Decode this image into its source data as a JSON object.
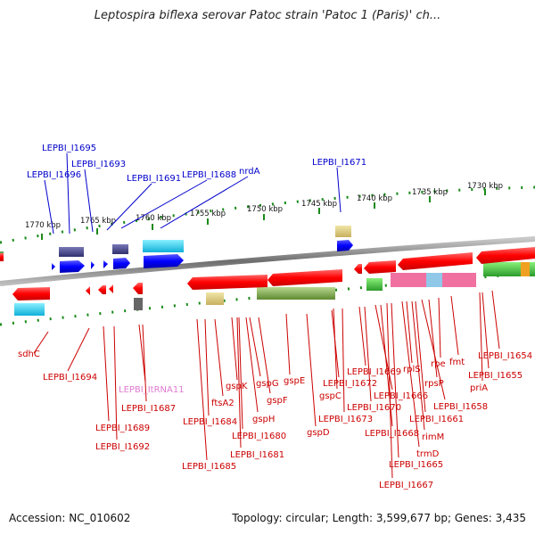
{
  "title": "Leptospira biflexa serovar Patoc strain 'Patoc 1 (Paris)' ch...",
  "footer": {
    "accession": "Accession: NC_010602",
    "topology": "Topology: circular; Length: 3,599,677 bp; Genes: 3,435"
  },
  "colors": {
    "top_labels": "#0000cc",
    "bottom_labels": "#cc0000",
    "rna_label": "#e07ad0",
    "backbone": "#808080",
    "ticks": "#1a8a1a"
  },
  "scale": {
    "ticks": [
      "1770 kbp",
      "1765 kbp",
      "1760 kbp",
      "1755 kbp",
      "1750 kbp",
      "1745 kbp",
      "1740 kbp",
      "1735 kbp",
      "1730 kbp"
    ]
  },
  "top_labels": [
    "LEPBI_I1695",
    "LEPBI_I1696",
    "LEPBI_I1693",
    "LEPBI_I1691",
    "LEPBI_I1688",
    "nrdA",
    "LEPBI_I1671"
  ],
  "bottom_labels": [
    "sdhC",
    "LEPBI_I1694",
    "LEPBI_I1689",
    "LEPBI_I1692",
    "LEPBI_ItRNA11",
    "LEPBI_I1687",
    "ftsA2",
    "LEPBI_I1684",
    "LEPBI_I1685",
    "gspK",
    "gspG",
    "gspF",
    "gspE",
    "gspH",
    "LEPBI_I1680",
    "LEPBI_I1681",
    "gspC",
    "gspD",
    "LEPBI_I1672",
    "LEPBI_I1673",
    "LEPBI_I1669",
    "LEPBI_I1670",
    "LEPBI_I1666",
    "LEPBI_I1668",
    "rplS",
    "rpsP",
    "LEPBI_I1661",
    "rpe",
    "fmt",
    "LEPBI_I1658",
    "rimM",
    "trmD",
    "LEPBI_I1665",
    "LEPBI_I1667",
    "LEPBI_I1654",
    "LEPBI_I1655",
    "priA"
  ]
}
